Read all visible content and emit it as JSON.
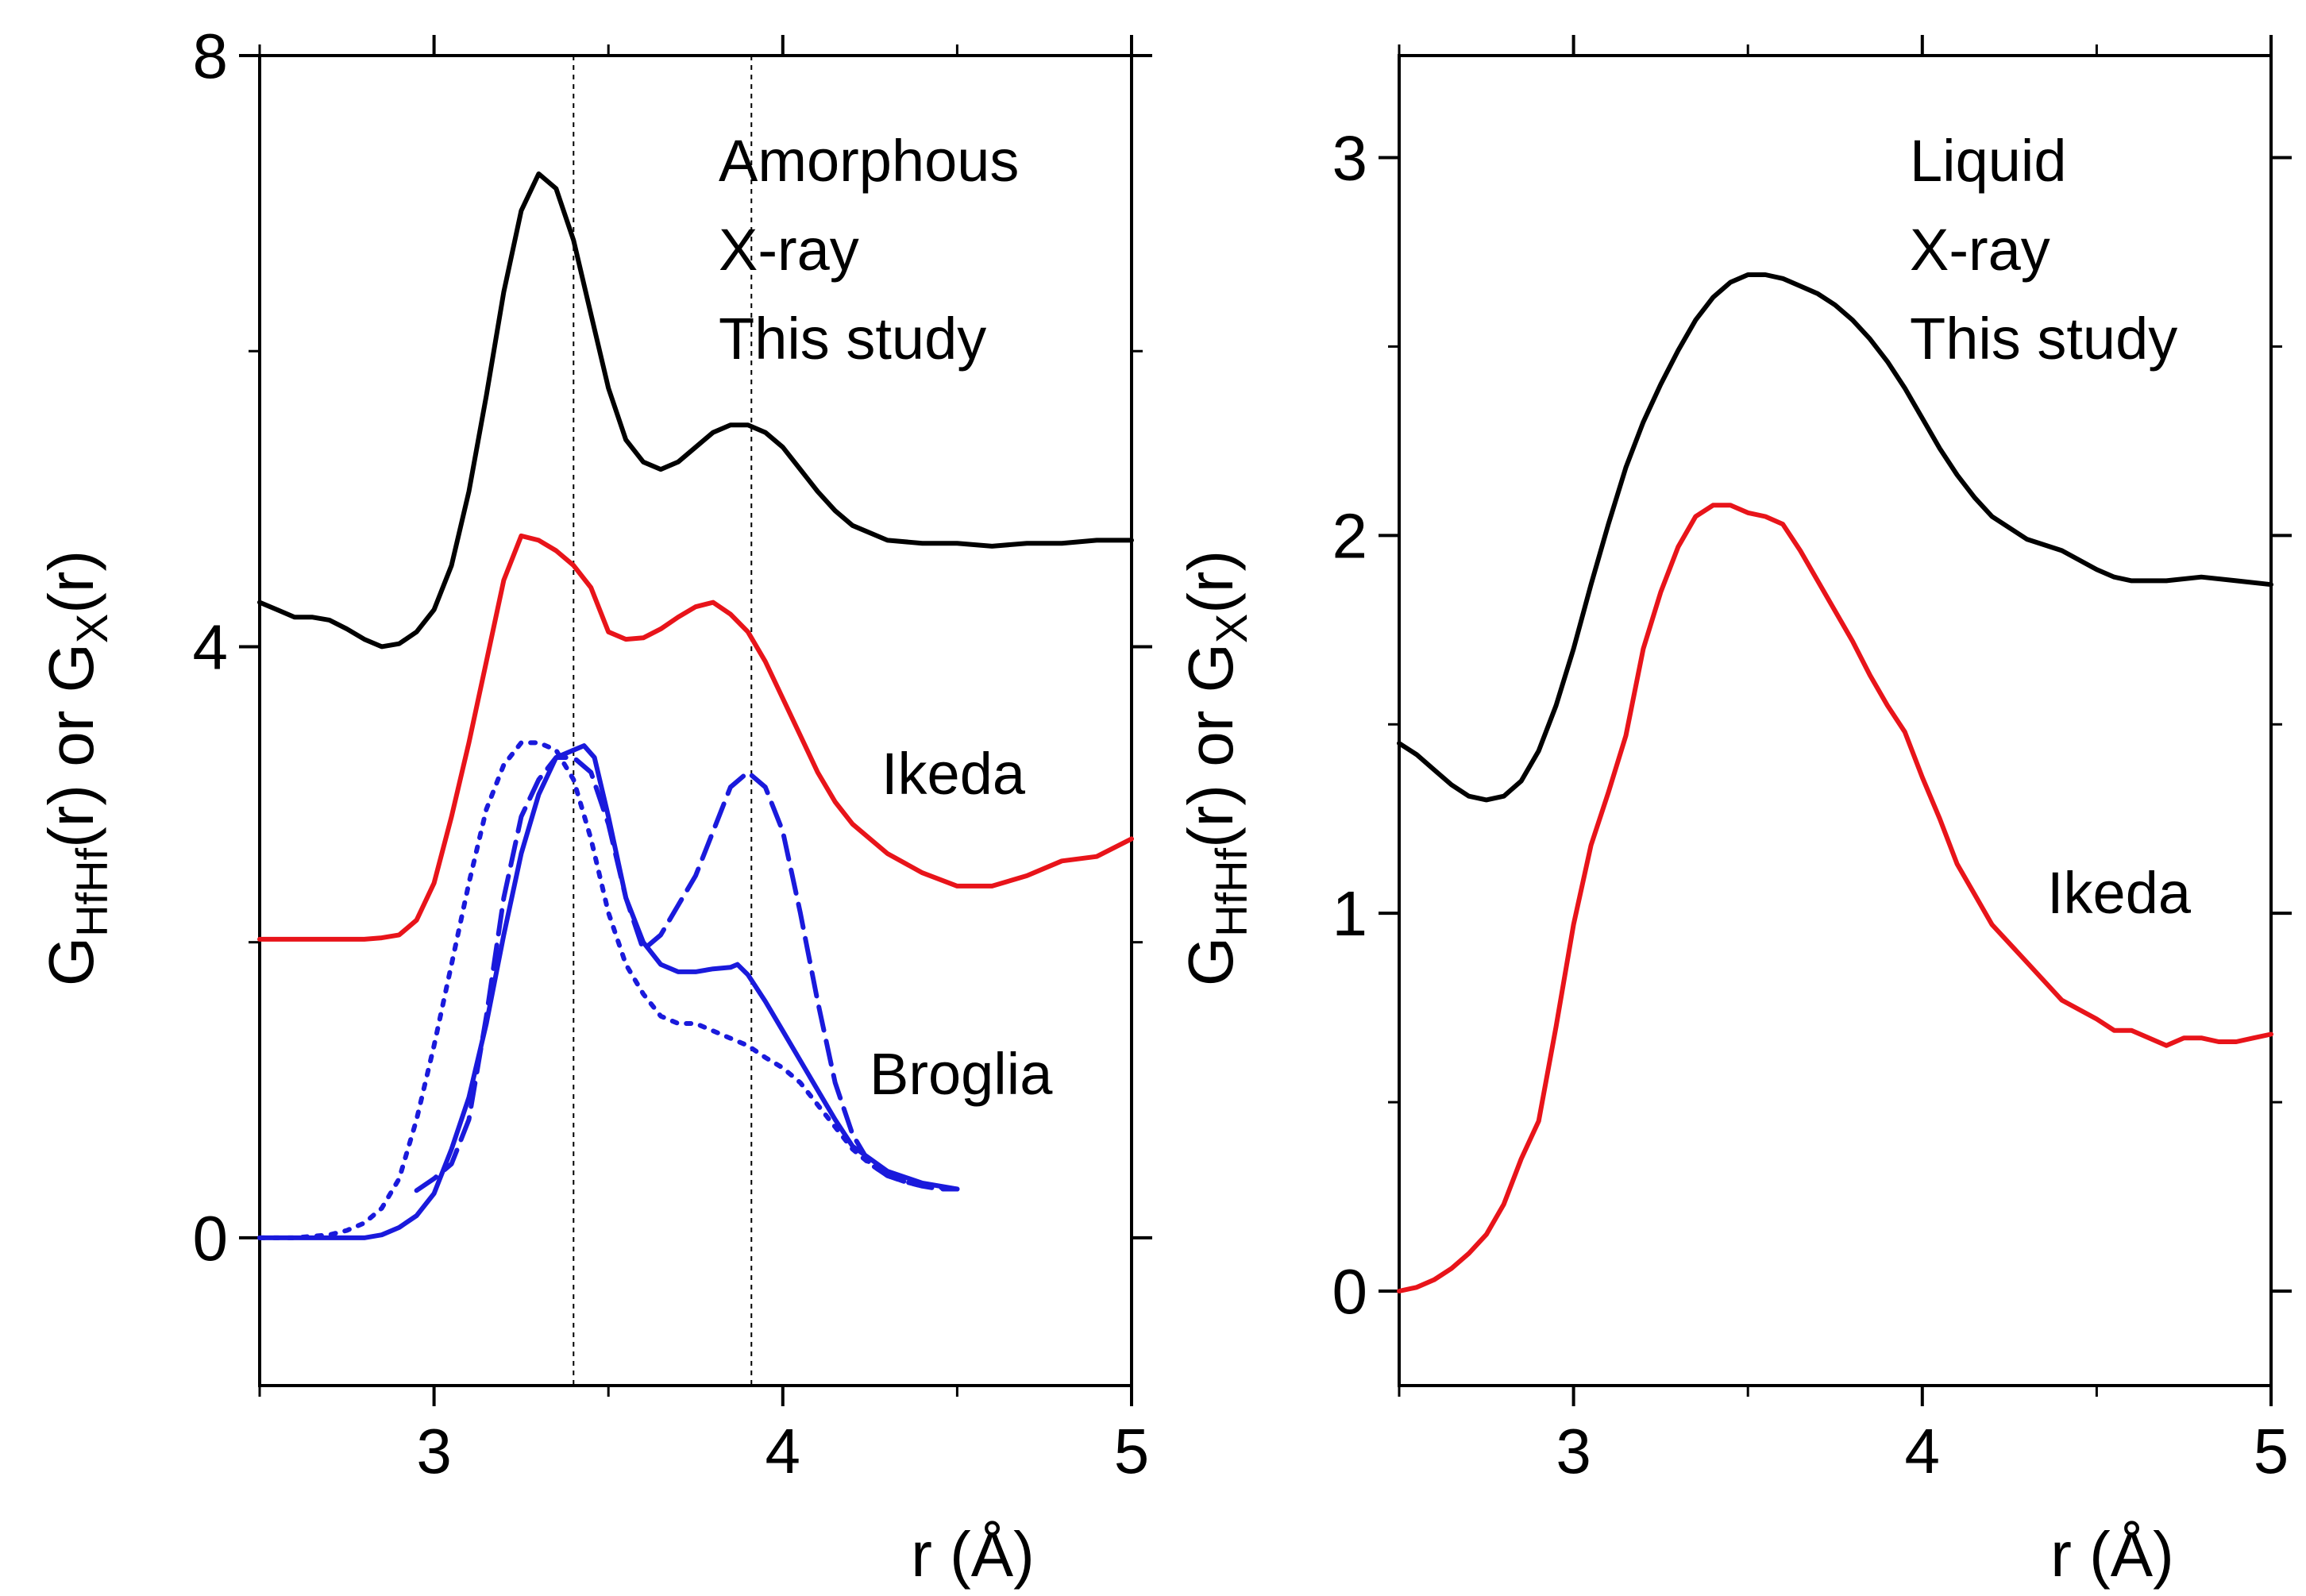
{
  "chart_data": [
    {
      "type": "line",
      "panel": "left",
      "xlabel": "r (Å)",
      "ylabel_parts": {
        "g": "G",
        "sub1": "HfHf",
        "mid": "(r) or G",
        "sub2": "X",
        "end": "(r)"
      },
      "xlim": [
        2.5,
        5.0
      ],
      "ylim": [
        -1.0,
        8.0
      ],
      "x_ticks": [
        3,
        4,
        5
      ],
      "x_tick_labels": [
        "3",
        "4",
        "5"
      ],
      "y_ticks": [
        0,
        4,
        8
      ],
      "y_tick_labels": [
        "0",
        "4",
        "8"
      ],
      "annotations": {
        "line1": "Amorphous",
        "line2": "X-ray",
        "line3": "This study",
        "ikeda": "Ikeda",
        "broglia": "Broglia"
      },
      "reference_lines_x": [
        3.4,
        3.91
      ],
      "series": [
        {
          "name": "This study",
          "color": "#000000",
          "style": "solid",
          "x": [
            2.5,
            2.55,
            2.6,
            2.65,
            2.7,
            2.75,
            2.8,
            2.85,
            2.9,
            2.95,
            3.0,
            3.05,
            3.1,
            3.15,
            3.2,
            3.25,
            3.3,
            3.35,
            3.4,
            3.45,
            3.5,
            3.55,
            3.6,
            3.65,
            3.7,
            3.75,
            3.8,
            3.85,
            3.9,
            3.95,
            4.0,
            4.05,
            4.1,
            4.15,
            4.2,
            4.3,
            4.4,
            4.5,
            4.6,
            4.7,
            4.8,
            4.9,
            5.0
          ],
          "y": [
            4.3,
            4.25,
            4.2,
            4.2,
            4.18,
            4.12,
            4.05,
            4.0,
            4.02,
            4.1,
            4.25,
            4.55,
            5.05,
            5.7,
            6.4,
            6.95,
            7.2,
            7.1,
            6.75,
            6.25,
            5.75,
            5.4,
            5.25,
            5.2,
            5.25,
            5.35,
            5.45,
            5.5,
            5.5,
            5.45,
            5.35,
            5.2,
            5.05,
            4.92,
            4.82,
            4.72,
            4.7,
            4.7,
            4.68,
            4.7,
            4.7,
            4.72,
            4.72
          ]
        },
        {
          "name": "Ikeda",
          "color": "#e8141a",
          "style": "solid",
          "x": [
            2.5,
            2.6,
            2.7,
            2.8,
            2.85,
            2.9,
            2.95,
            3.0,
            3.05,
            3.1,
            3.15,
            3.2,
            3.25,
            3.3,
            3.35,
            3.4,
            3.45,
            3.5,
            3.55,
            3.6,
            3.65,
            3.7,
            3.75,
            3.8,
            3.85,
            3.9,
            3.95,
            4.0,
            4.05,
            4.1,
            4.15,
            4.2,
            4.3,
            4.4,
            4.5,
            4.6,
            4.7,
            4.8,
            4.9,
            5.0
          ],
          "y": [
            2.02,
            2.02,
            2.02,
            2.02,
            2.03,
            2.05,
            2.15,
            2.4,
            2.85,
            3.35,
            3.9,
            4.45,
            4.75,
            4.72,
            4.65,
            4.55,
            4.4,
            4.1,
            4.05,
            4.06,
            4.12,
            4.2,
            4.27,
            4.3,
            4.22,
            4.1,
            3.9,
            3.65,
            3.4,
            3.15,
            2.95,
            2.8,
            2.6,
            2.47,
            2.38,
            2.38,
            2.45,
            2.55,
            2.58,
            2.7
          ]
        },
        {
          "name": "Broglia (solid)",
          "color": "#1a1adc",
          "style": "solid",
          "x": [
            2.5,
            2.6,
            2.7,
            2.8,
            2.85,
            2.9,
            2.95,
            3.0,
            3.05,
            3.1,
            3.15,
            3.2,
            3.25,
            3.3,
            3.35,
            3.4,
            3.43,
            3.46,
            3.5,
            3.55,
            3.6,
            3.65,
            3.7,
            3.75,
            3.8,
            3.85,
            3.87,
            3.9,
            3.95,
            4.0,
            4.05,
            4.1,
            4.15,
            4.2,
            4.3,
            4.4,
            4.5
          ],
          "y": [
            0.0,
            0.0,
            0.0,
            0.0,
            0.02,
            0.07,
            0.15,
            0.3,
            0.6,
            0.95,
            1.45,
            2.05,
            2.6,
            3.0,
            3.25,
            3.3,
            3.33,
            3.25,
            2.85,
            2.3,
            2.0,
            1.85,
            1.8,
            1.8,
            1.82,
            1.83,
            1.85,
            1.78,
            1.6,
            1.4,
            1.2,
            1.0,
            0.8,
            0.62,
            0.45,
            0.37,
            0.33
          ]
        },
        {
          "name": "Broglia (dashed)",
          "color": "#1a1adc",
          "style": "dashed",
          "x": [
            2.95,
            3.0,
            3.05,
            3.1,
            3.15,
            3.2,
            3.25,
            3.3,
            3.35,
            3.4,
            3.45,
            3.5,
            3.55,
            3.6,
            3.65,
            3.7,
            3.75,
            3.8,
            3.85,
            3.9,
            3.95,
            4.0,
            4.05,
            4.1,
            4.15,
            4.2,
            4.25,
            4.3,
            4.35,
            4.4,
            4.45,
            4.5
          ],
          "y": [
            0.32,
            0.4,
            0.5,
            0.8,
            1.5,
            2.3,
            2.85,
            3.1,
            3.25,
            3.25,
            3.15,
            2.8,
            2.3,
            1.95,
            2.05,
            2.25,
            2.45,
            2.75,
            3.05,
            3.15,
            3.05,
            2.75,
            2.2,
            1.6,
            1.05,
            0.7,
            0.5,
            0.42,
            0.38,
            0.35,
            0.33,
            0.33
          ]
        },
        {
          "name": "Broglia (dotted)",
          "color": "#1a1adc",
          "style": "dotted",
          "x": [
            2.5,
            2.6,
            2.7,
            2.75,
            2.8,
            2.85,
            2.9,
            2.95,
            3.0,
            3.05,
            3.1,
            3.15,
            3.2,
            3.25,
            3.3,
            3.35,
            3.4,
            3.45,
            3.5,
            3.55,
            3.6,
            3.65,
            3.7,
            3.75,
            3.8,
            3.85,
            3.9,
            3.95,
            4.0,
            4.05,
            4.1,
            4.15,
            4.2,
            4.25,
            4.3,
            4.35,
            4.4,
            4.45,
            4.5
          ],
          "y": [
            0.0,
            0.0,
            0.02,
            0.05,
            0.1,
            0.2,
            0.4,
            0.8,
            1.3,
            1.85,
            2.4,
            2.9,
            3.2,
            3.35,
            3.35,
            3.3,
            3.1,
            2.7,
            2.2,
            1.85,
            1.65,
            1.5,
            1.45,
            1.45,
            1.4,
            1.35,
            1.3,
            1.22,
            1.15,
            1.05,
            0.9,
            0.75,
            0.6,
            0.5,
            0.42,
            0.38,
            0.35,
            0.34,
            0.33
          ]
        }
      ]
    },
    {
      "type": "line",
      "panel": "right",
      "xlabel": "r (Å)",
      "ylabel_parts": {
        "g": "G",
        "sub1": "HfHf",
        "mid": "(r) or G",
        "sub2": "X",
        "end": "(r)"
      },
      "xlim": [
        2.5,
        5.0
      ],
      "ylim": [
        -0.25,
        3.27
      ],
      "x_ticks": [
        3,
        4,
        5
      ],
      "x_tick_labels": [
        "3",
        "4",
        "5"
      ],
      "y_ticks": [
        0,
        1,
        2,
        3
      ],
      "y_tick_labels": [
        "0",
        "1",
        "2",
        "3"
      ],
      "annotations": {
        "line1": "Liquid",
        "line2": "X-ray",
        "line3": "This study",
        "ikeda": "Ikeda"
      },
      "series": [
        {
          "name": "This study",
          "color": "#000000",
          "style": "solid",
          "x": [
            2.5,
            2.55,
            2.6,
            2.65,
            2.7,
            2.75,
            2.8,
            2.85,
            2.9,
            2.95,
            3.0,
            3.05,
            3.1,
            3.15,
            3.2,
            3.25,
            3.3,
            3.35,
            3.4,
            3.45,
            3.5,
            3.55,
            3.6,
            3.65,
            3.7,
            3.75,
            3.8,
            3.85,
            3.9,
            3.95,
            4.0,
            4.05,
            4.1,
            4.15,
            4.2,
            4.3,
            4.4,
            4.5,
            4.55,
            4.6,
            4.7,
            4.8,
            4.9,
            5.0
          ],
          "y": [
            1.45,
            1.42,
            1.38,
            1.34,
            1.31,
            1.3,
            1.31,
            1.35,
            1.43,
            1.55,
            1.7,
            1.87,
            2.03,
            2.18,
            2.3,
            2.4,
            2.49,
            2.57,
            2.63,
            2.67,
            2.69,
            2.69,
            2.68,
            2.66,
            2.64,
            2.61,
            2.57,
            2.52,
            2.46,
            2.39,
            2.31,
            2.23,
            2.16,
            2.1,
            2.05,
            1.99,
            1.96,
            1.91,
            1.89,
            1.88,
            1.88,
            1.89,
            1.88,
            1.87
          ]
        },
        {
          "name": "Ikeda",
          "color": "#e8141a",
          "style": "solid",
          "x": [
            2.5,
            2.55,
            2.6,
            2.65,
            2.7,
            2.75,
            2.8,
            2.85,
            2.9,
            2.95,
            3.0,
            3.05,
            3.1,
            3.15,
            3.2,
            3.25,
            3.3,
            3.35,
            3.4,
            3.45,
            3.5,
            3.55,
            3.6,
            3.65,
            3.7,
            3.75,
            3.8,
            3.85,
            3.9,
            3.95,
            4.0,
            4.05,
            4.1,
            4.15,
            4.2,
            4.3,
            4.4,
            4.5,
            4.55,
            4.6,
            4.65,
            4.7,
            4.75,
            4.8,
            4.85,
            4.9,
            4.95,
            5.0
          ],
          "y": [
            0.0,
            0.01,
            0.03,
            0.06,
            0.1,
            0.15,
            0.23,
            0.35,
            0.45,
            0.7,
            0.97,
            1.18,
            1.32,
            1.47,
            1.7,
            1.85,
            1.97,
            2.05,
            2.08,
            2.08,
            2.06,
            2.05,
            2.03,
            1.96,
            1.88,
            1.8,
            1.72,
            1.63,
            1.55,
            1.48,
            1.36,
            1.25,
            1.13,
            1.05,
            0.97,
            0.87,
            0.77,
            0.72,
            0.69,
            0.69,
            0.67,
            0.65,
            0.67,
            0.67,
            0.66,
            0.66,
            0.67,
            0.68
          ]
        }
      ]
    }
  ]
}
